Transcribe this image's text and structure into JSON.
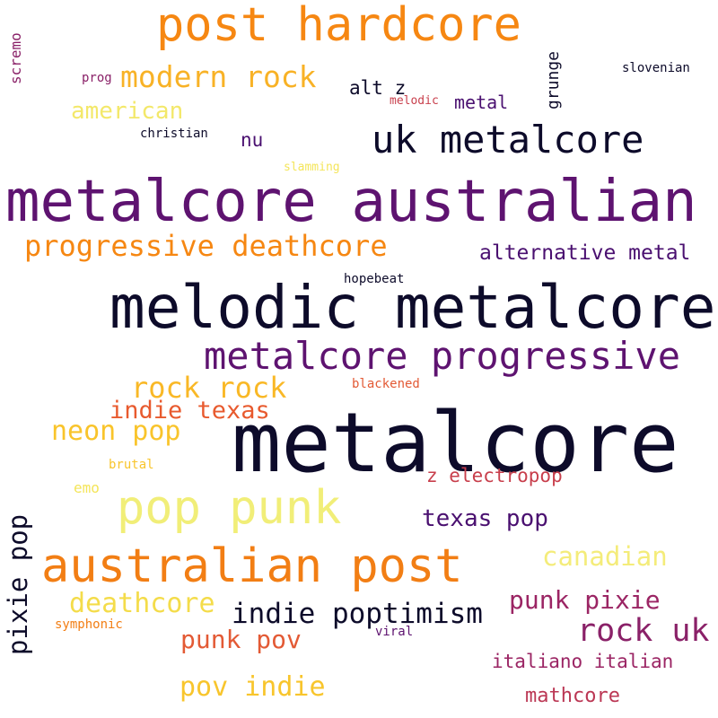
{
  "words": [
    {
      "text": "metalcore",
      "color": "#0d0b2a"
    },
    {
      "text": "melodic metalcore",
      "color": "#0d0b2a"
    },
    {
      "text": "metalcore australian",
      "color": "#5e1370"
    },
    {
      "text": "post hardcore",
      "color": "#f68712"
    },
    {
      "text": "pop punk",
      "color": "#f1ee78"
    },
    {
      "text": "australian post",
      "color": "#f27e14"
    },
    {
      "text": "metalcore progressive",
      "color": "#5e1370"
    },
    {
      "text": "uk metalcore",
      "color": "#0d0b2a"
    },
    {
      "text": "progressive deathcore",
      "color": "#f68712"
    },
    {
      "text": "modern rock",
      "color": "#f8b226"
    },
    {
      "text": "rock rock",
      "color": "#f9b826"
    },
    {
      "text": "indie poptimism",
      "color": "#0d0b2a"
    },
    {
      "text": "rock uk",
      "color": "#8a2168"
    },
    {
      "text": "deathcore",
      "color": "#f4dc4a"
    },
    {
      "text": "neon pop",
      "color": "#f9c42b"
    },
    {
      "text": "canadian",
      "color": "#f4ec7a"
    },
    {
      "text": "american",
      "color": "#f3e86a"
    },
    {
      "text": "indie texas",
      "color": "#e85a2e"
    },
    {
      "text": "pov indie",
      "color": "#f8c52c"
    },
    {
      "text": "punk pov",
      "color": "#e35a35"
    },
    {
      "text": "punk pixie",
      "color": "#9b2564"
    },
    {
      "text": "texas pop",
      "color": "#4a1070"
    },
    {
      "text": "alternative metal",
      "color": "#4a1070"
    },
    {
      "text": "pixie pop",
      "color": "#0d0b2a"
    },
    {
      "text": "italiano italian",
      "color": "#9b2564"
    },
    {
      "text": "mathcore",
      "color": "#bb3754"
    },
    {
      "text": "z electropop",
      "color": "#c83f4c"
    },
    {
      "text": "alt z",
      "color": "#0d0b2a"
    },
    {
      "text": "metal",
      "color": "#4a1070"
    },
    {
      "text": "nu",
      "color": "#4a1070"
    },
    {
      "text": "grunge",
      "color": "#0d0b2a"
    },
    {
      "text": "scremo",
      "color": "#8a2168"
    },
    {
      "text": "slovenian",
      "color": "#0d0b2a"
    },
    {
      "text": "christian",
      "color": "#0d0b2a"
    },
    {
      "text": "hopebeat",
      "color": "#0d0b2a"
    },
    {
      "text": "prog",
      "color": "#8a2168"
    },
    {
      "text": "melodic",
      "color": "#c83f4c"
    },
    {
      "text": "slamming",
      "color": "#f4e55a"
    },
    {
      "text": "blackened",
      "color": "#e35a35"
    },
    {
      "text": "brutal",
      "color": "#f8c52c"
    },
    {
      "text": "emo",
      "color": "#f4e55a"
    },
    {
      "text": "symphonic",
      "color": "#f27e14"
    },
    {
      "text": "viral",
      "color": "#5e1370"
    }
  ]
}
